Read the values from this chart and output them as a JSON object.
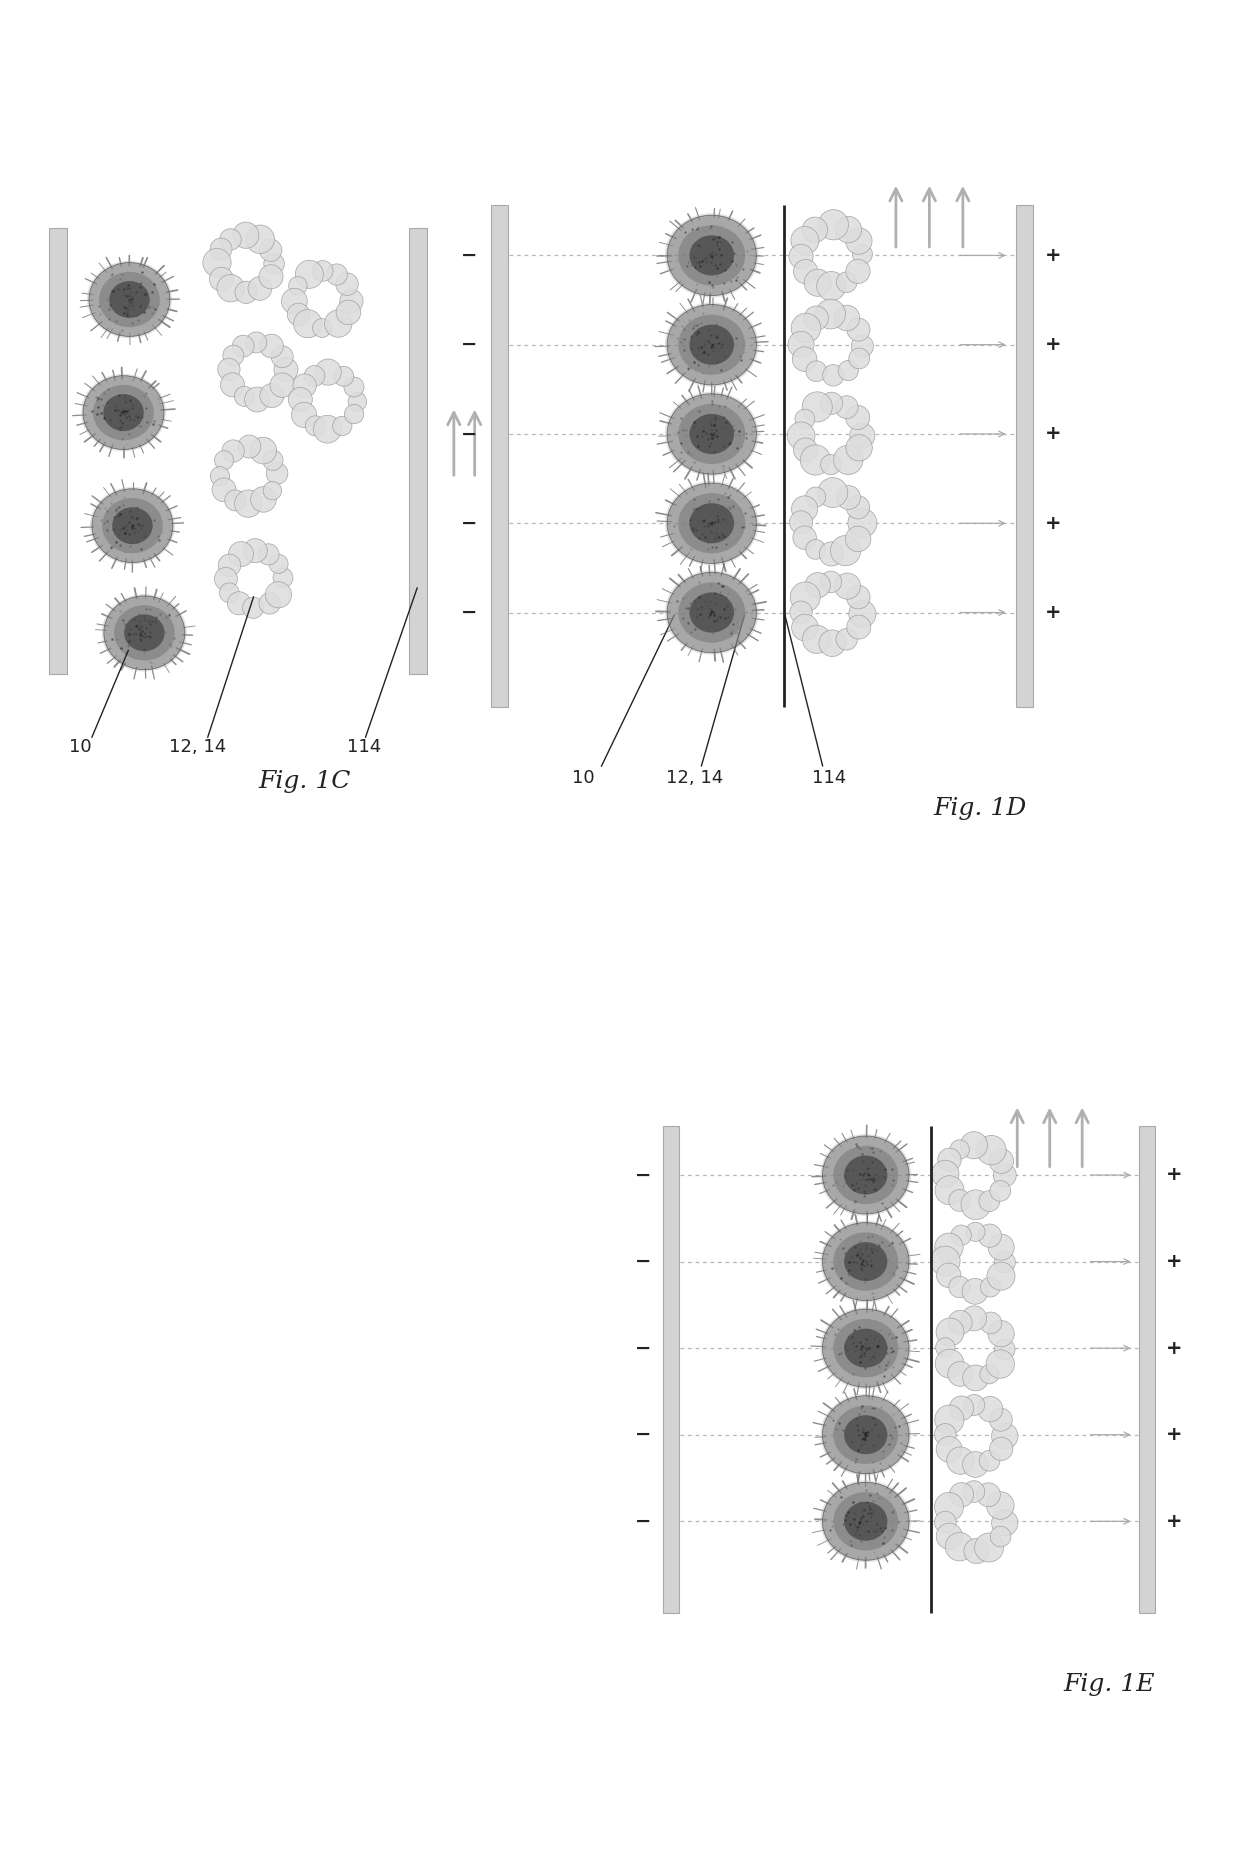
{
  "background_color": "#ffffff",
  "wall_facecolor": "#c8c8c8",
  "wall_edgecolor": "#999999",
  "membrane_color": "#222222",
  "cell_body_dark": "#4a4a4a",
  "cell_body_mid": "#7a7a7a",
  "cell_body_light": "#aaaaaa",
  "cell_edge": "#333333",
  "spike_color": "#666666",
  "virus_blob_face": "#dddddd",
  "virus_blob_edge": "#999999",
  "dash_color": "#aaaaaa",
  "arrow_color": "#aaaaaa",
  "pm_color": "#222222",
  "label_color": "#222222",
  "flow_arrow_color": "#b0b0b0",
  "fig1c_label": "Fig. 1C",
  "fig1d_label": "Fig. 1D",
  "fig1e_label": "Fig. 1E",
  "ref_10": "10",
  "ref_12_14": "12, 14",
  "ref_114": "114"
}
